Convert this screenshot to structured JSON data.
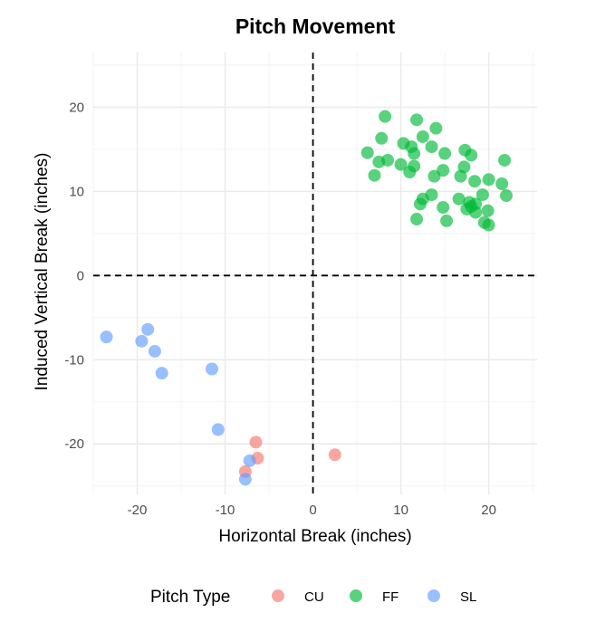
{
  "chart_data": {
    "type": "scatter",
    "title": "Pitch Movement",
    "xlabel": "Horizontal Break (inches)",
    "ylabel": "Induced Vertical Break (inches)",
    "xlim": [
      -25,
      25.5
    ],
    "ylim": [
      -26,
      26.5
    ],
    "x_ticks": [
      -20,
      -10,
      0,
      10,
      20
    ],
    "y_ticks": [
      -20,
      -10,
      0,
      10,
      20
    ],
    "reference_lines": {
      "x": 0,
      "y": 0,
      "style": "dashed"
    },
    "grid": true,
    "legend": {
      "title": "Pitch Type",
      "position": "bottom"
    },
    "series": [
      {
        "name": "CU",
        "color": "#F8766D",
        "points": [
          [
            -6.5,
            -19.8
          ],
          [
            -6.3,
            -21.7
          ],
          [
            -7.7,
            -23.3
          ],
          [
            2.5,
            -21.3
          ]
        ]
      },
      {
        "name": "FF",
        "color": "#00BA38",
        "points": [
          [
            8.2,
            18.9
          ],
          [
            11.8,
            18.5
          ],
          [
            14.0,
            17.5
          ],
          [
            12.5,
            16.5
          ],
          [
            7.8,
            16.3
          ],
          [
            10.3,
            15.7
          ],
          [
            11.2,
            15.3
          ],
          [
            13.5,
            15.3
          ],
          [
            6.2,
            14.6
          ],
          [
            11.5,
            14.5
          ],
          [
            15.0,
            14.5
          ],
          [
            17.3,
            14.9
          ],
          [
            18.0,
            14.3
          ],
          [
            7.5,
            13.5
          ],
          [
            8.5,
            13.7
          ],
          [
            10.0,
            13.2
          ],
          [
            11.5,
            13.0
          ],
          [
            11.0,
            12.3
          ],
          [
            14.8,
            12.5
          ],
          [
            17.2,
            12.9
          ],
          [
            21.8,
            13.7
          ],
          [
            7.0,
            11.9
          ],
          [
            13.8,
            11.8
          ],
          [
            16.8,
            11.8
          ],
          [
            18.4,
            11.2
          ],
          [
            20.0,
            11.4
          ],
          [
            21.5,
            10.9
          ],
          [
            22.0,
            9.5
          ],
          [
            19.3,
            9.6
          ],
          [
            13.5,
            9.6
          ],
          [
            12.5,
            9.1
          ],
          [
            16.6,
            9.1
          ],
          [
            17.8,
            8.7
          ],
          [
            12.2,
            8.5
          ],
          [
            18.0,
            8.2
          ],
          [
            19.9,
            7.7
          ],
          [
            17.5,
            7.9
          ],
          [
            14.8,
            8.1
          ],
          [
            18.5,
            7.5
          ],
          [
            11.8,
            6.7
          ],
          [
            15.2,
            6.5
          ],
          [
            19.5,
            6.3
          ],
          [
            20.0,
            6.0
          ],
          [
            18.5,
            8.5
          ]
        ]
      },
      {
        "name": "SL",
        "color": "#619CFF",
        "points": [
          [
            -23.5,
            -7.3
          ],
          [
            -18.8,
            -6.4
          ],
          [
            -19.5,
            -7.8
          ],
          [
            -18.0,
            -9.0
          ],
          [
            -17.2,
            -11.6
          ],
          [
            -11.5,
            -11.1
          ],
          [
            -10.8,
            -18.3
          ],
          [
            -7.2,
            -22.0
          ],
          [
            -7.7,
            -24.2
          ]
        ]
      }
    ]
  }
}
